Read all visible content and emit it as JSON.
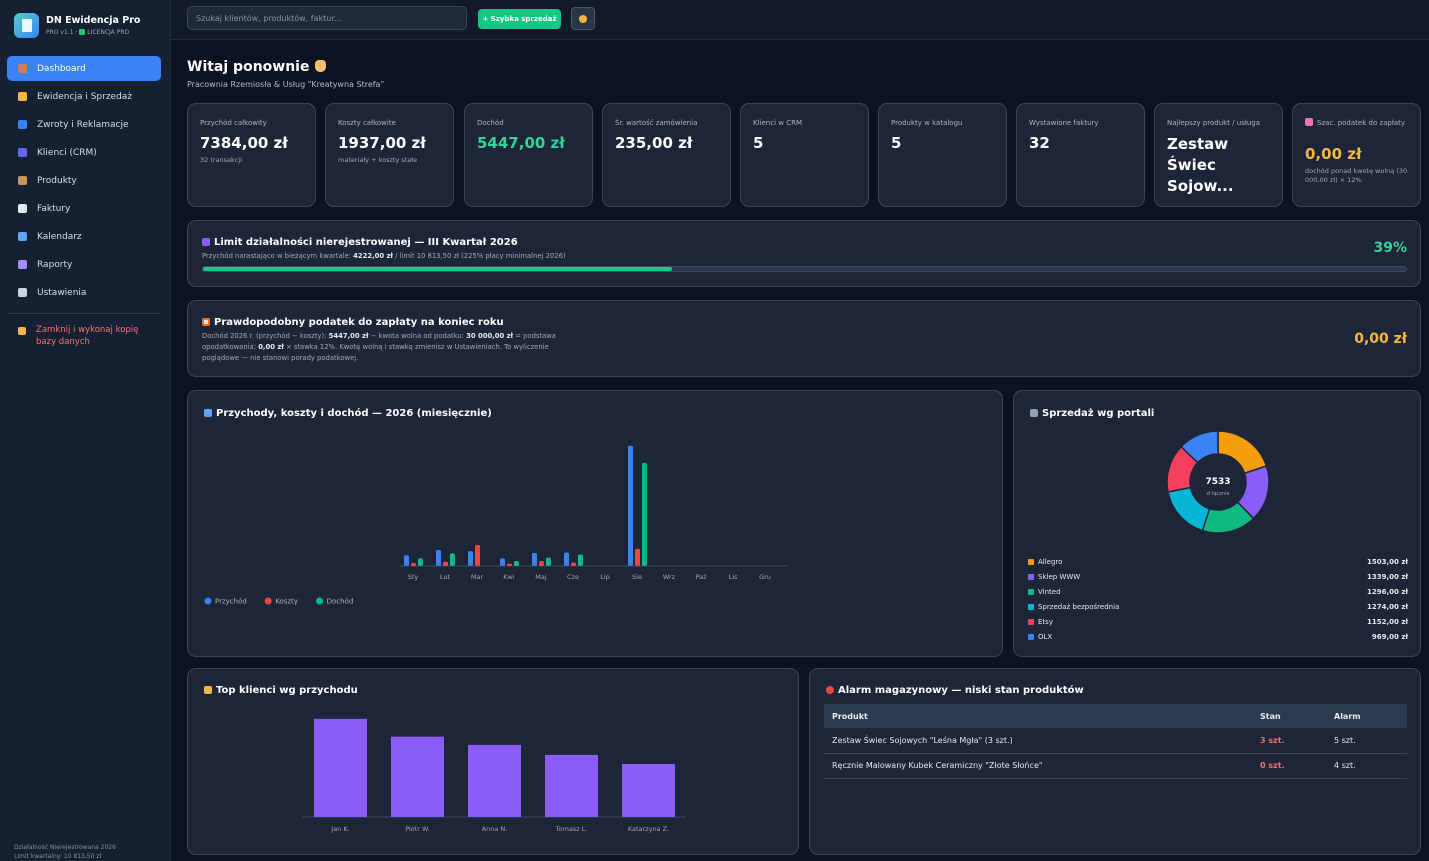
{
  "app": {
    "name": "DN Ewidencja Pro",
    "version": "PRO v1.1 ·",
    "license": "LICENCJA PRO"
  },
  "sidebar": {
    "items": [
      {
        "label": "Dashboard",
        "icon": "home-icon",
        "color": "#d97b5a"
      },
      {
        "label": "Ewidencja i Sprzedaż",
        "icon": "money-bag-icon",
        "color": "#f5b942"
      },
      {
        "label": "Zwroty i Reklamacje",
        "icon": "return-arrows-icon",
        "color": "#3b82f6"
      },
      {
        "label": "Klienci (CRM)",
        "icon": "people-icon",
        "color": "#6366f1"
      },
      {
        "label": "Produkty",
        "icon": "box-icon",
        "color": "#c8955a"
      },
      {
        "label": "Faktury",
        "icon": "document-icon",
        "color": "#e2e8f0"
      },
      {
        "label": "Kalendarz",
        "icon": "calendar-icon",
        "color": "#60a5fa"
      },
      {
        "label": "Raporty",
        "icon": "bar-chart-icon",
        "color": "#a78bfa"
      },
      {
        "label": "Ustawienia",
        "icon": "gear-icon",
        "color": "#cbd5e1"
      }
    ],
    "exit_label": "Zamknij i wykonaj kopię bazy danych",
    "footer_line1": "Działalność Nierejestrowana 2026",
    "footer_line2": "Limit kwartalny: 10 813,50 zł"
  },
  "topbar": {
    "search_placeholder": "Szukaj klientów, produktów, faktur...",
    "quick_sale_label": "+ Szybka sprzedaż"
  },
  "header": {
    "title": "Witaj ponownie",
    "subtitle": "Pracownia Rzemiosła & Usług \"Kreatywna Strefa\""
  },
  "stats": [
    {
      "label": "Przychód całkowity",
      "value": "7384,00 zł",
      "note": "32 transakcji"
    },
    {
      "label": "Koszty całkowite",
      "value": "1937,00 zł",
      "note": "materiały + koszty stałe"
    },
    {
      "label": "Dochód",
      "value": "5447,00 zł",
      "note": ""
    },
    {
      "label": "Śr. wartość zamówienia",
      "value": "235,00 zł",
      "note": ""
    },
    {
      "label": "Klienci w CRM",
      "value": "5",
      "note": ""
    },
    {
      "label": "Produkty w katalogu",
      "value": "5",
      "note": ""
    },
    {
      "label": "Wystawione faktury",
      "value": "32",
      "note": ""
    },
    {
      "label": "Najlepszy produkt / usługa",
      "value": "Zestaw Świec Sojow...",
      "note": ""
    },
    {
      "label": "Szac. podatek do zapłaty",
      "value": "0,00 zł",
      "note": "dochód ponad kwotę wolną (30 000,00 zł) × 12%"
    }
  ],
  "limit": {
    "title": "Limit działalności nierejestrowanej — III Kwartał 2026",
    "sub_prefix": "Przychód narastająco w bieżącym kwartale:",
    "sub_amount": "4222,00 zł",
    "sub_suffix": "/ limit 10 813,50 zł (225% płacy minimalnej 2026)",
    "percent_label": "39%",
    "progress": 0.39
  },
  "tax": {
    "title": "Prawdopodobny podatek do zapłaty na koniec roku",
    "line1_a": "Dochód 2026 r. (przychód − koszty):",
    "line1_b": "5447,00 zł",
    "line1_c": "− kwota wolna od podatku:",
    "line1_d": "30 000,00 zł",
    "line1_e": "= podstawa",
    "line2_a": "opodatkowania:",
    "line2_b": "0,00 zł",
    "line2_c": "× stawka 12%. Kwotę wolną i stawkę zmienisz w Ustawieniach. To wyliczenie",
    "line3": "poglądowe — nie stanowi porady podatkowej.",
    "value": "0,00 zł"
  },
  "monthly": {
    "title": "Przychody, koszty i dochód — 2026 (miesięcznie)"
  },
  "portals": {
    "title": "Sprzedaż wg portali",
    "total": "7533",
    "total_label": "zł łącznie"
  },
  "topclients": {
    "title": "Top klienci wg przychodu"
  },
  "stock": {
    "title": "Alarm magazynowy — niski stan produktów",
    "headers": [
      "Produkt",
      "Stan",
      "Alarm"
    ],
    "rows": [
      {
        "product": "Zestaw Świec Sojowych \"Leśna Mgła\" (3 szt.)",
        "stock": "3 szt.",
        "alarm": "5 szt."
      },
      {
        "product": "Ręcznie Malowany Kubek Ceramiczny \"Złote Słońce\"",
        "stock": "0 szt.",
        "alarm": "4 szt."
      }
    ]
  },
  "chart_data": [
    {
      "type": "bar",
      "title": "Przychody, koszty i dochód — 2026 (miesięcznie)",
      "categories": [
        "Sty",
        "Lut",
        "Mar",
        "Kwi",
        "Maj",
        "Cze",
        "Lip",
        "Sie",
        "Wrz",
        "Paź",
        "Lis",
        "Gru"
      ],
      "series": [
        {
          "name": "Przychód",
          "color": "#3b82f6",
          "values": [
            280,
            420,
            390,
            200,
            340,
            350,
            0,
            3150,
            0,
            0,
            0,
            0
          ]
        },
        {
          "name": "Koszty",
          "color": "#ef4444",
          "values": [
            80,
            110,
            550,
            60,
            130,
            90,
            0,
            450,
            0,
            0,
            0,
            0
          ]
        },
        {
          "name": "Dochód",
          "color": "#10b981",
          "values": [
            200,
            330,
            0,
            130,
            220,
            300,
            0,
            2700,
            0,
            0,
            0,
            0
          ]
        }
      ],
      "ylim": [
        0,
        3300
      ],
      "grid": false,
      "legend": "bottom-left"
    },
    {
      "type": "pie",
      "title": "Sprzedaż wg portali",
      "labels": [
        "Allegro",
        "Sklep WWW",
        "Vinted",
        "Sprzedaż bezpośrednia",
        "Etsy",
        "OLX"
      ],
      "value_labels": [
        "1503,00 zł",
        "1339,00 zł",
        "1296,00 zł",
        "1274,00 zł",
        "1152,00 zł",
        "969,00 zł"
      ],
      "values": [
        1503,
        1339,
        1296,
        1274,
        1152,
        969
      ],
      "colors": [
        "#f59e0b",
        "#8b5cf6",
        "#10b981",
        "#06b6d4",
        "#f43f5e",
        "#3b82f6"
      ],
      "legend": "bottom"
    },
    {
      "type": "bar",
      "title": "Top klienci wg przychodu",
      "categories": [
        "Jan K.",
        "Piotr W.",
        "Anna N.",
        "Tomasz L.",
        "Katarzyna Z."
      ],
      "values": [
        2150,
        1760,
        1580,
        1360,
        1160
      ],
      "color": "#8b5cf6",
      "ylim": [
        0,
        2300
      ],
      "grid": false
    }
  ]
}
